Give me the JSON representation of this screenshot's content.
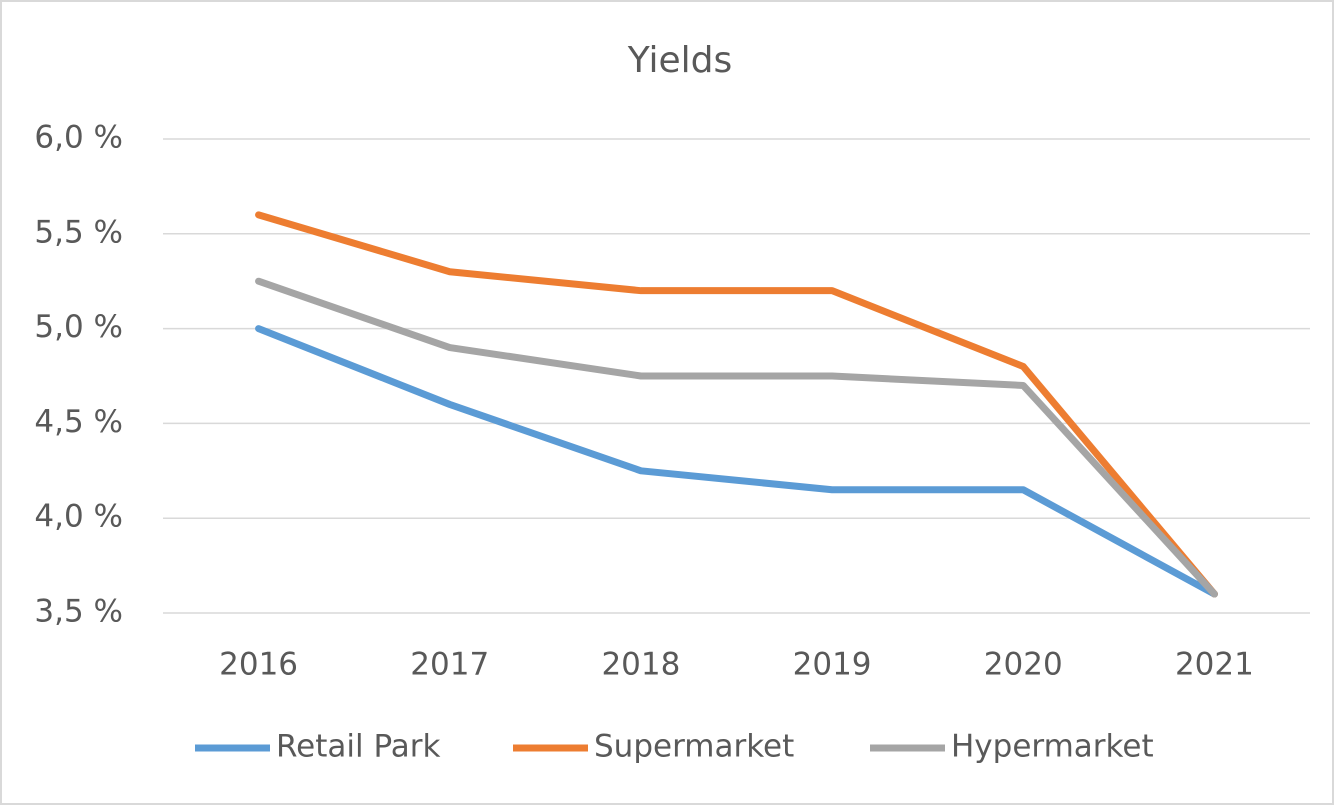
{
  "chart_data": {
    "type": "line",
    "title": "Yields",
    "categories": [
      "2016",
      "2017",
      "2018",
      "2019",
      "2020",
      "2021"
    ],
    "series": [
      {
        "name": "Retail Park",
        "color": "#5b9bd5",
        "values": [
          5.0,
          4.6,
          4.25,
          4.15,
          4.15,
          3.6
        ]
      },
      {
        "name": "Supermarket",
        "color": "#ed7d31",
        "values": [
          5.6,
          5.3,
          5.2,
          5.2,
          4.8,
          3.6
        ]
      },
      {
        "name": "Hypermarket",
        "color": "#a5a5a5",
        "values": [
          5.25,
          4.9,
          4.75,
          4.75,
          4.7,
          3.6
        ]
      }
    ],
    "ylim": [
      3.5,
      6.0
    ],
    "yticks": [
      {
        "value": 3.5,
        "label": "3,5 %"
      },
      {
        "value": 4.0,
        "label": "4,0 %"
      },
      {
        "value": 4.5,
        "label": "4,5 %"
      },
      {
        "value": 5.0,
        "label": "5,0 %"
      },
      {
        "value": 5.5,
        "label": "5,5 %"
      },
      {
        "value": 6.0,
        "label": "6,0 %"
      }
    ],
    "grid": true,
    "legend": "bottom"
  }
}
